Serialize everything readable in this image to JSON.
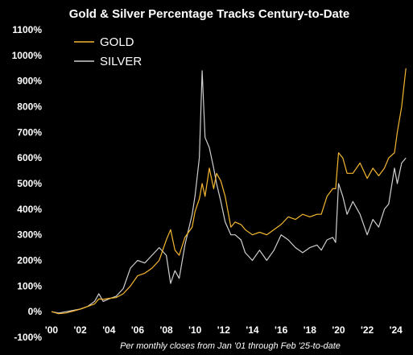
{
  "chart_data": {
    "type": "line",
    "title": "Gold & Silver Percentage Tracks Century-to-Date",
    "caption": "Per monthly closes from Jan '01 through Feb '25-to-date",
    "xlabel": "",
    "ylabel": "",
    "xlim": [
      2000,
      2024.8
    ],
    "ylim": [
      -100,
      1100
    ],
    "x_ticks": [
      {
        "value": 2000,
        "label": "'00"
      },
      {
        "value": 2002,
        "label": "'02"
      },
      {
        "value": 2004,
        "label": "'04"
      },
      {
        "value": 2006,
        "label": "'06"
      },
      {
        "value": 2008,
        "label": "'08"
      },
      {
        "value": 2010,
        "label": "'10"
      },
      {
        "value": 2012,
        "label": "'12"
      },
      {
        "value": 2014,
        "label": "'14"
      },
      {
        "value": 2016,
        "label": "'16"
      },
      {
        "value": 2018,
        "label": "'18"
      },
      {
        "value": 2020,
        "label": "'20"
      },
      {
        "value": 2022,
        "label": "'22"
      },
      {
        "value": 2024,
        "label": "'24"
      }
    ],
    "y_ticks": [
      {
        "value": -100,
        "label": "-100%"
      },
      {
        "value": 0,
        "label": "0%"
      },
      {
        "value": 100,
        "label": "100%"
      },
      {
        "value": 200,
        "label": "200%"
      },
      {
        "value": 300,
        "label": "300%"
      },
      {
        "value": 400,
        "label": "400%"
      },
      {
        "value": 500,
        "label": "500%"
      },
      {
        "value": 600,
        "label": "600%"
      },
      {
        "value": 700,
        "label": "700%"
      },
      {
        "value": 800,
        "label": "800%"
      },
      {
        "value": 900,
        "label": "900%"
      },
      {
        "value": 1000,
        "label": "1000%"
      },
      {
        "value": 1100,
        "label": "1100%"
      }
    ],
    "grid": false,
    "legend": "top-left",
    "series": [
      {
        "name": "GOLD",
        "color": "#f5b731",
        "points": [
          [
            2000.0,
            0
          ],
          [
            2000.5,
            -8
          ],
          [
            2001.0,
            -5
          ],
          [
            2001.5,
            2
          ],
          [
            2002.0,
            10
          ],
          [
            2002.5,
            20
          ],
          [
            2003.0,
            30
          ],
          [
            2003.3,
            50
          ],
          [
            2003.6,
            48
          ],
          [
            2004.0,
            52
          ],
          [
            2004.5,
            55
          ],
          [
            2005.0,
            70
          ],
          [
            2005.5,
            100
          ],
          [
            2006.0,
            140
          ],
          [
            2006.5,
            150
          ],
          [
            2007.0,
            170
          ],
          [
            2007.5,
            200
          ],
          [
            2008.0,
            280
          ],
          [
            2008.3,
            320
          ],
          [
            2008.6,
            240
          ],
          [
            2008.9,
            220
          ],
          [
            2009.3,
            290
          ],
          [
            2009.8,
            330
          ],
          [
            2010.0,
            390
          ],
          [
            2010.3,
            440
          ],
          [
            2010.5,
            500
          ],
          [
            2010.7,
            450
          ],
          [
            2011.0,
            560
          ],
          [
            2011.3,
            480
          ],
          [
            2011.5,
            540
          ],
          [
            2011.8,
            510
          ],
          [
            2012.1,
            450
          ],
          [
            2012.5,
            330
          ],
          [
            2012.8,
            350
          ],
          [
            2013.2,
            340
          ],
          [
            2013.5,
            320
          ],
          [
            2014.0,
            300
          ],
          [
            2014.5,
            310
          ],
          [
            2015.0,
            300
          ],
          [
            2015.5,
            320
          ],
          [
            2016.0,
            340
          ],
          [
            2016.5,
            370
          ],
          [
            2017.0,
            360
          ],
          [
            2017.5,
            380
          ],
          [
            2018.0,
            370
          ],
          [
            2018.5,
            380
          ],
          [
            2018.8,
            380
          ],
          [
            2019.2,
            450
          ],
          [
            2019.6,
            480
          ],
          [
            2019.8,
            480
          ],
          [
            2020.0,
            620
          ],
          [
            2020.3,
            600
          ],
          [
            2020.6,
            540
          ],
          [
            2021.0,
            540
          ],
          [
            2021.5,
            580
          ],
          [
            2022.0,
            520
          ],
          [
            2022.4,
            560
          ],
          [
            2022.8,
            530
          ],
          [
            2023.2,
            560
          ],
          [
            2023.5,
            600
          ],
          [
            2023.9,
            620
          ],
          [
            2024.1,
            700
          ],
          [
            2024.4,
            800
          ],
          [
            2024.7,
            950
          ]
        ]
      },
      {
        "name": "SILVER",
        "color": "#cfcfcf",
        "points": [
          [
            2000.0,
            0
          ],
          [
            2000.5,
            -5
          ],
          [
            2001.0,
            0
          ],
          [
            2001.5,
            5
          ],
          [
            2002.0,
            10
          ],
          [
            2002.5,
            20
          ],
          [
            2003.0,
            40
          ],
          [
            2003.3,
            70
          ],
          [
            2003.6,
            40
          ],
          [
            2004.0,
            50
          ],
          [
            2004.5,
            60
          ],
          [
            2005.0,
            90
          ],
          [
            2005.5,
            170
          ],
          [
            2006.0,
            200
          ],
          [
            2006.5,
            190
          ],
          [
            2007.0,
            220
          ],
          [
            2007.5,
            250
          ],
          [
            2008.0,
            220
          ],
          [
            2008.3,
            110
          ],
          [
            2008.6,
            160
          ],
          [
            2008.9,
            130
          ],
          [
            2009.3,
            260
          ],
          [
            2009.8,
            380
          ],
          [
            2010.0,
            450
          ],
          [
            2010.3,
            600
          ],
          [
            2010.5,
            940
          ],
          [
            2010.7,
            680
          ],
          [
            2011.0,
            640
          ],
          [
            2011.3,
            560
          ],
          [
            2011.5,
            500
          ],
          [
            2011.8,
            430
          ],
          [
            2012.1,
            350
          ],
          [
            2012.5,
            300
          ],
          [
            2012.8,
            300
          ],
          [
            2013.2,
            280
          ],
          [
            2013.5,
            230
          ],
          [
            2014.0,
            200
          ],
          [
            2014.5,
            240
          ],
          [
            2015.0,
            200
          ],
          [
            2015.5,
            240
          ],
          [
            2016.0,
            300
          ],
          [
            2016.5,
            280
          ],
          [
            2017.0,
            250
          ],
          [
            2017.5,
            230
          ],
          [
            2018.0,
            250
          ],
          [
            2018.5,
            260
          ],
          [
            2018.8,
            240
          ],
          [
            2019.2,
            280
          ],
          [
            2019.6,
            290
          ],
          [
            2019.8,
            270
          ],
          [
            2020.0,
            500
          ],
          [
            2020.3,
            450
          ],
          [
            2020.6,
            380
          ],
          [
            2021.0,
            430
          ],
          [
            2021.5,
            380
          ],
          [
            2022.0,
            300
          ],
          [
            2022.4,
            360
          ],
          [
            2022.8,
            330
          ],
          [
            2023.2,
            400
          ],
          [
            2023.5,
            420
          ],
          [
            2023.9,
            560
          ],
          [
            2024.1,
            500
          ],
          [
            2024.4,
            580
          ],
          [
            2024.7,
            600
          ]
        ]
      }
    ]
  }
}
